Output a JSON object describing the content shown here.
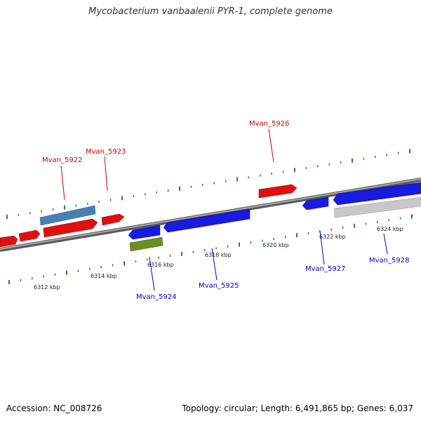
{
  "title": "Mycobacterium vanbaalenii PYR-1, complete genome",
  "footer": {
    "accession": "Accession: NC_008726",
    "summary": "Topology: circular; Length: 6,491,865 bp; Genes: 6,037"
  },
  "colors": {
    "forward_gene": "#e8141b",
    "reverse_gene": "#1a1ae0",
    "backbone": "#8c8c8c",
    "tick": "#1f8a1f",
    "other_gene_blue": "#4a7fb5",
    "other_gene_green": "#6b8e23",
    "other_gene_grey": "#c8c8c8",
    "forward_label": "#cc0000",
    "reverse_label": "#0000cc"
  },
  "scale_labels": [
    "6312 kbp",
    "6314 kbp",
    "6316 kbp",
    "6318 kbp",
    "6320 kbp",
    "6322 kbp",
    "6324 kbp"
  ],
  "gene_labels": {
    "forward": [
      "Mvan_5922",
      "Mvan_5923",
      "Mvan_5926"
    ],
    "reverse": [
      "Mvan_5924",
      "Mvan_5925",
      "Mvan_5927",
      "Mvan_5928"
    ]
  }
}
